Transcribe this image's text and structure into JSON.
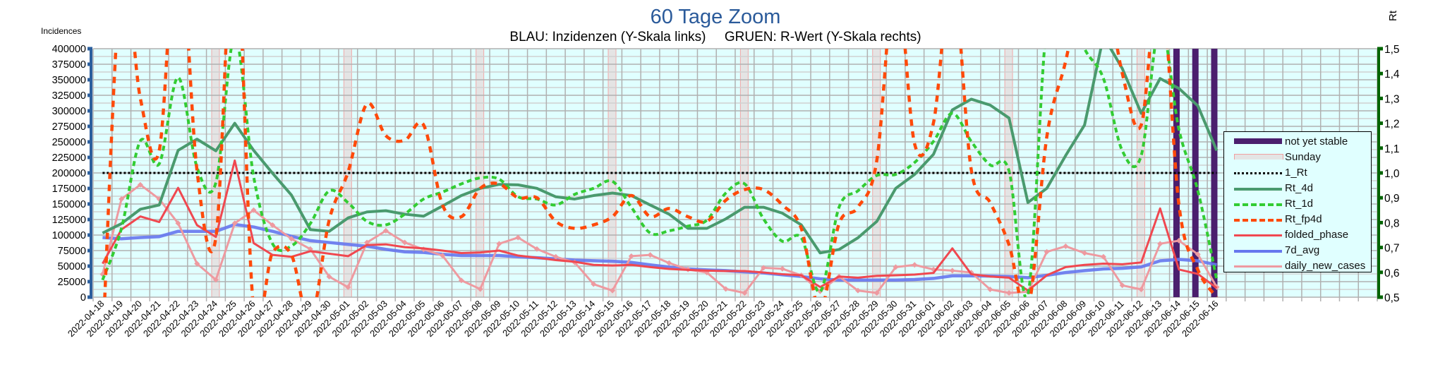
{
  "chart_data": {
    "type": "line",
    "title": "60 Tage Zoom",
    "subtitle": "BLAU: Inzidenzen (Y-Skala links)     GRUEN: R-Wert (Y-Skala rechts)",
    "ylabel": "Incidences",
    "y2label": "Rt",
    "ylim": [
      0,
      400000
    ],
    "y2lim": [
      0.5,
      1.5
    ],
    "y_ticks": [
      "0",
      "25000",
      "50000",
      "75000",
      "100000",
      "125000",
      "150000",
      "175000",
      "200000",
      "225000",
      "250000",
      "275000",
      "300000",
      "325000",
      "350000",
      "375000",
      "400000"
    ],
    "y2_ticks": [
      "0,5",
      "0,6",
      "0,7",
      "0,8",
      "0,9",
      "1,0",
      "1,1",
      "1,2",
      "1,3",
      "1,4",
      "1,5"
    ],
    "grid": true,
    "legend_position": "right",
    "categories": [
      "2022-04-18",
      "2022-04-19",
      "2022-04-20",
      "2022-04-21",
      "2022-04-22",
      "2022-04-23",
      "2022-04-24",
      "2022-04-25",
      "2022-04-26",
      "2022-04-27",
      "2022-04-28",
      "2022-04-29",
      "2022-04-30",
      "2022-05-01",
      "2022-05-02",
      "2022-05-03",
      "2022-05-04",
      "2022-05-05",
      "2022-05-06",
      "2022-05-07",
      "2022-05-08",
      "2022-05-09",
      "2022-05-10",
      "2022-05-11",
      "2022-05-12",
      "2022-05-13",
      "2022-05-14",
      "2022-05-15",
      "2022-05-16",
      "2022-05-17",
      "2022-05-18",
      "2022-05-19",
      "2022-05-20",
      "2022-05-21",
      "2022-05-22",
      "2022-05-23",
      "2022-05-24",
      "2022-05-25",
      "2022-05-26",
      "2022-05-27",
      "2022-05-28",
      "2022-05-29",
      "2022-05-30",
      "2022-05-31",
      "2022-06-01",
      "2022-06-02",
      "2022-06-03",
      "2022-06-04",
      "2022-06-05",
      "2022-06-06",
      "2022-06-07",
      "2022-06-08",
      "2022-06-09",
      "2022-06-10",
      "2022-06-11",
      "2022-06-12",
      "2022-06-13",
      "2022-06-14",
      "2022-06-15",
      "2022-06-16"
    ],
    "sundays": [
      "2022-04-24",
      "2022-05-01",
      "2022-05-08",
      "2022-05-15",
      "2022-05-22",
      "2022-05-29",
      "2022-06-05",
      "2022-06-12"
    ],
    "not_yet_stable": [
      "2022-06-14",
      "2022-06-15",
      "2022-06-16"
    ],
    "reference_line": {
      "name": "1_Rt",
      "value": 1.0,
      "axis": "right"
    },
    "series": [
      {
        "name": "Rt_4d",
        "axis": "right",
        "color": "#4a9a6e",
        "style": "solid",
        "values": [
          0.758,
          0.796,
          0.854,
          0.871,
          1.091,
          1.136,
          1.089,
          1.2,
          1.091,
          0.999,
          0.911,
          0.772,
          0.765,
          0.819,
          0.843,
          0.848,
          0.834,
          0.826,
          0.867,
          0.909,
          0.938,
          0.954,
          0.952,
          0.938,
          0.904,
          0.895,
          0.909,
          0.919,
          0.909,
          0.871,
          0.834,
          0.777,
          0.777,
          0.815,
          0.862,
          0.862,
          0.838,
          0.791,
          0.678,
          0.692,
          0.739,
          0.805,
          0.938,
          0.994,
          1.075,
          1.254,
          1.297,
          1.273,
          1.221,
          0.881,
          0.938,
          1.07,
          1.193,
          1.55,
          1.42,
          1.24,
          1.38,
          1.34,
          1.27,
          1.09
        ]
      },
      {
        "name": "Rt_1d",
        "axis": "right",
        "color": "#33cc33",
        "style": "dashed",
        "values": [
          0.569,
          0.777,
          1.129,
          1.037,
          1.384,
          1.023,
          0.961,
          1.55,
          0.985,
          0.715,
          0.706,
          0.796,
          0.928,
          0.88,
          0.805,
          0.791,
          0.834,
          0.895,
          0.923,
          0.956,
          0.98,
          0.975,
          0.904,
          0.895,
          0.871,
          0.914,
          0.938,
          0.966,
          0.862,
          0.758,
          0.767,
          0.786,
          0.81,
          0.919,
          0.956,
          0.815,
          0.725,
          0.739,
          0.522,
          0.862,
          0.928,
          0.99,
          0.994,
          1.042,
          1.127,
          1.24,
          1.127,
          1.032,
          1.008,
          0.51,
          1.6,
          1.7,
          1.5,
          1.38,
          1.089,
          1.07,
          1.6,
          1.174,
          0.928,
          0.57
        ]
      },
      {
        "name": "Rt_fp4d",
        "axis": "right",
        "color": "#ff4a0a",
        "style": "dashed-wide",
        "values": [
          0.3,
          1.8,
          1.3,
          1.09,
          2.0,
          1.01,
          0.74,
          2.0,
          0.45,
          0.68,
          0.67,
          0.4,
          0.81,
          1.004,
          1.278,
          1.15,
          1.131,
          1.193,
          0.871,
          0.824,
          0.938,
          0.956,
          0.9,
          0.9,
          0.805,
          0.777,
          0.791,
          0.824,
          0.909,
          0.824,
          0.857,
          0.824,
          0.805,
          0.89,
          0.933,
          0.933,
          0.871,
          0.777,
          0.45,
          0.796,
          0.862,
          1.051,
          1.8,
          1.117,
          1.202,
          1.8,
          1.013,
          0.881,
          0.711,
          0.45,
          1.145,
          1.45,
          1.8,
          1.8,
          1.4,
          1.193,
          1.8,
          0.87,
          0.61,
          0.5
        ]
      },
      {
        "name": "folded_phase",
        "axis": "left",
        "color": "#f04850",
        "style": "solid",
        "values": [
          54000,
          109000,
          130000,
          121000,
          176000,
          116000,
          97000,
          220000,
          87000,
          68000,
          65000,
          74000,
          70000,
          66000,
          84000,
          85000,
          80500,
          78600,
          75000,
          71000,
          72000,
          75000,
          67000,
          63500,
          59700,
          57000,
          52000,
          51000,
          52000,
          48400,
          45400,
          43900,
          42700,
          42000,
          42000,
          39700,
          37000,
          35200,
          16300,
          33300,
          31400,
          34400,
          35200,
          36300,
          39000,
          78600,
          37000,
          33300,
          31400,
          10600,
          35200,
          48400,
          52000,
          54000,
          53000,
          55900,
          142800,
          44500,
          37400,
          14700
        ]
      },
      {
        "name": "7d_avg",
        "axis": "left",
        "color": "#6677ee",
        "style": "solid",
        "values": [
          96000,
          94000,
          96000,
          97500,
          106000,
          106000,
          106000,
          117000,
          113000,
          106000,
          98000,
          91000,
          88000,
          85000,
          82000,
          77000,
          73000,
          72000,
          69000,
          67000,
          67000,
          67000,
          65000,
          63500,
          61600,
          59700,
          58600,
          57800,
          56000,
          52000,
          48400,
          45400,
          43900,
          42700,
          40800,
          39000,
          36000,
          33300,
          29500,
          27600,
          27600,
          27600,
          27600,
          28400,
          30200,
          34400,
          34400,
          34000,
          33300,
          31400,
          35200,
          39700,
          42700,
          45400,
          46500,
          48700,
          58500,
          60800,
          58500,
          52100
        ]
      },
      {
        "name": "daily_new_cases",
        "axis": "left",
        "color": "#ee9aa0",
        "style": "marker",
        "values": [
          37000,
          158000,
          181000,
          158000,
          119000,
          54000,
          28000,
          119000,
          140000,
          116000,
          94000,
          77500,
          33000,
          16000,
          88000,
          107000,
          88000,
          77000,
          67000,
          27000,
          13000,
          86000,
          96000,
          77500,
          65000,
          56000,
          21000,
          10600,
          66000,
          68000,
          55000,
          44600,
          39700,
          13200,
          6800,
          47300,
          45700,
          35200,
          9500,
          33300,
          10600,
          6800,
          48400,
          52000,
          44600,
          42700,
          39700,
          12500,
          6800,
          8700,
          73000,
          82000,
          71000,
          65000,
          19000,
          12500,
          86000,
          91000,
          69000,
          16200
        ]
      }
    ],
    "legend": [
      {
        "label": "not yet stable",
        "color": "#4b1f6e"
      },
      {
        "label": "Sunday",
        "color": "#e4e4e4"
      },
      {
        "label": "1_Rt",
        "color": "#000000"
      },
      {
        "label": "Rt_4d",
        "color": "#4a9a6e"
      },
      {
        "label": "Rt_1d",
        "color": "#33cc33"
      },
      {
        "label": "Rt_fp4d",
        "color": "#ff4a0a"
      },
      {
        "label": "folded_phase",
        "color": "#f04850"
      },
      {
        "label": "7d_avg",
        "color": "#6677ee"
      },
      {
        "label": "daily_new_cases",
        "color": "#ee9aa0"
      }
    ],
    "colors": {
      "left_axis": "#2b5f9e",
      "right_axis": "#006400",
      "plot_bg": "#e0ffff",
      "title": "#2a5a9a"
    }
  }
}
